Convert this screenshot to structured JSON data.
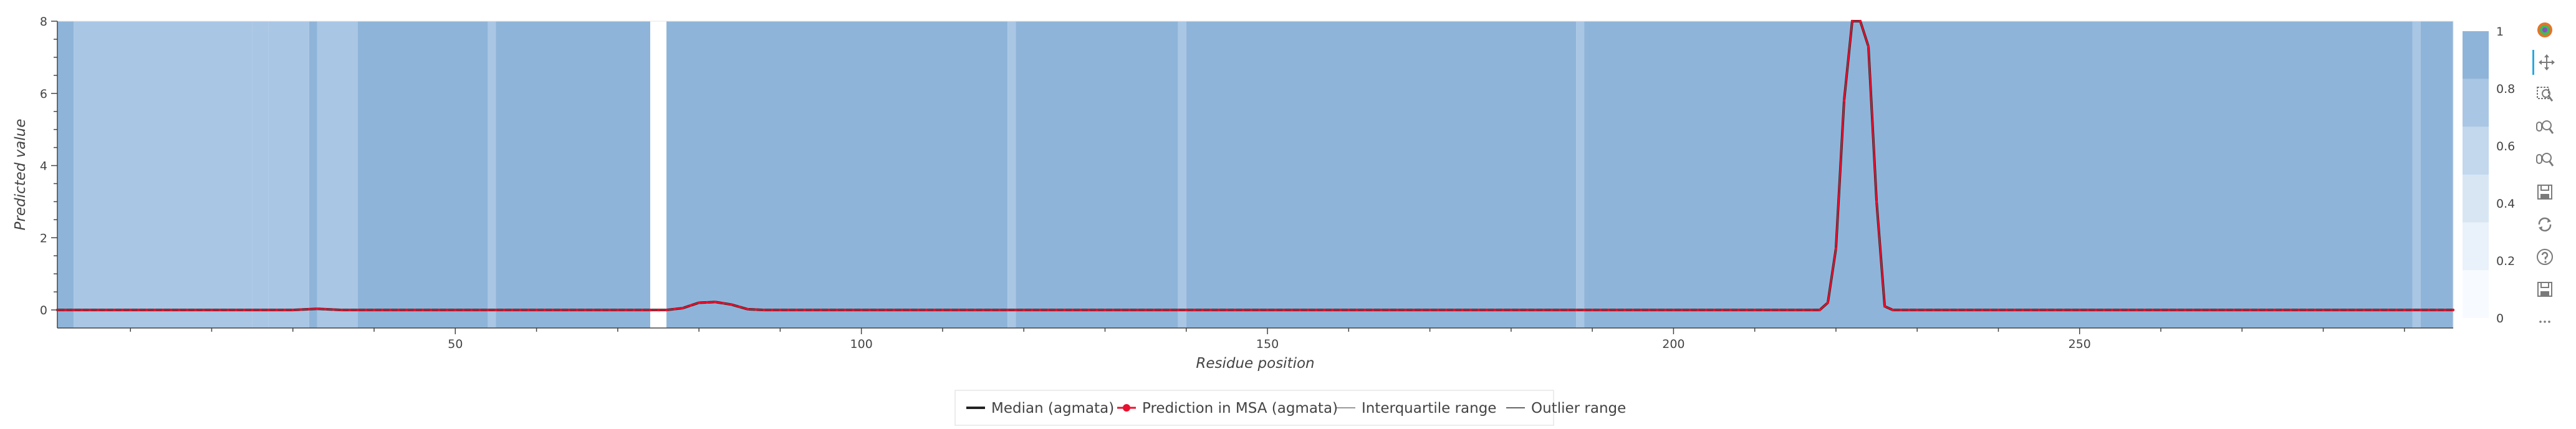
{
  "chart_data": {
    "type": "line",
    "xlabel": "Residue position",
    "ylabel": "Predicted value",
    "xlim": [
      1,
      296
    ],
    "ylim": [
      -0.5,
      8
    ],
    "x_ticks": [
      50,
      100,
      150,
      200,
      250
    ],
    "x_tick_labels": [
      "50",
      "100",
      "150",
      "200",
      "250"
    ],
    "y_ticks": [
      0,
      2,
      4,
      6,
      8
    ],
    "y_tick_labels": [
      "0",
      "2",
      "4",
      "6",
      "8"
    ],
    "grid": false,
    "legend_position": "bottom-center",
    "series": [
      {
        "name": "Median (agmata)",
        "color": "#222222",
        "style": "line",
        "points": [
          [
            1,
            0
          ],
          [
            30,
            0
          ],
          [
            33,
            0.03
          ],
          [
            36,
            0
          ],
          [
            40,
            0
          ],
          [
            76,
            0
          ],
          [
            78,
            0.05
          ],
          [
            80,
            0.2
          ],
          [
            82,
            0.22
          ],
          [
            84,
            0.15
          ],
          [
            86,
            0.02
          ],
          [
            88,
            0
          ],
          [
            218,
            0
          ],
          [
            219,
            0.2
          ],
          [
            220,
            1.7
          ],
          [
            221,
            5.8
          ],
          [
            222,
            8
          ],
          [
            223,
            8
          ],
          [
            224,
            7.3
          ],
          [
            225,
            3
          ],
          [
            226,
            0.1
          ],
          [
            227,
            0
          ],
          [
            296,
            0
          ]
        ]
      },
      {
        "name": "Prediction in MSA (agmata)",
        "color": "#e8112d",
        "style": "line-markers",
        "points": [
          [
            1,
            0
          ],
          [
            30,
            0
          ],
          [
            33,
            0.03
          ],
          [
            36,
            0
          ],
          [
            40,
            0
          ],
          [
            76,
            0
          ],
          [
            78,
            0.05
          ],
          [
            80,
            0.2
          ],
          [
            82,
            0.22
          ],
          [
            84,
            0.15
          ],
          [
            86,
            0.02
          ],
          [
            88,
            0
          ],
          [
            218,
            0
          ],
          [
            219,
            0.2
          ],
          [
            220,
            1.7
          ],
          [
            221,
            5.8
          ],
          [
            222,
            8
          ],
          [
            223,
            8
          ],
          [
            224,
            7.3
          ],
          [
            225,
            3
          ],
          [
            226,
            0.1
          ],
          [
            227,
            0
          ],
          [
            296,
            0
          ]
        ]
      },
      {
        "name": "Interquartile range",
        "color": "#999999",
        "style": "line",
        "points": []
      },
      {
        "name": "Outlier range",
        "color": "#666666",
        "style": "line",
        "points": []
      }
    ],
    "background_regions": {
      "description_values": "MSA coverage fraction per residue",
      "segments": [
        {
          "start": 1,
          "end": 3,
          "value": 0.9
        },
        {
          "start": 3,
          "end": 25,
          "value": 0.7
        },
        {
          "start": 25,
          "end": 27,
          "value": 0.8
        },
        {
          "start": 27,
          "end": 32,
          "value": 0.75
        },
        {
          "start": 32,
          "end": 33,
          "value": 0.95
        },
        {
          "start": 33,
          "end": 38,
          "value": 0.75
        },
        {
          "start": 38,
          "end": 54,
          "value": 1
        },
        {
          "start": 54,
          "end": 55,
          "value": 0.7
        },
        {
          "start": 55,
          "end": 74,
          "value": 1
        },
        {
          "start": 74,
          "end": 76,
          "value": 0
        },
        {
          "start": 76,
          "end": 118,
          "value": 1
        },
        {
          "start": 118,
          "end": 119,
          "value": 0.7
        },
        {
          "start": 119,
          "end": 139,
          "value": 1
        },
        {
          "start": 139,
          "end": 140,
          "value": 0.7
        },
        {
          "start": 140,
          "end": 188,
          "value": 1
        },
        {
          "start": 188,
          "end": 189,
          "value": 0.7
        },
        {
          "start": 189,
          "end": 291,
          "value": 1
        },
        {
          "start": 291,
          "end": 292,
          "value": 0.7
        },
        {
          "start": 292,
          "end": 296,
          "value": 1
        }
      ]
    },
    "colorbar": {
      "range": [
        0,
        1
      ],
      "ticks": [
        "0",
        "0.2",
        "0.4",
        "0.6",
        "0.8",
        "1"
      ],
      "colors": [
        "#f7fbff",
        "#e9f1fa",
        "#d8e6f4",
        "#c3d7ed",
        "#a9c6e4",
        "#8fb4d9"
      ]
    }
  },
  "legend": {
    "items": [
      {
        "label": "Median (agmata)"
      },
      {
        "label": "Prediction in MSA (agmata)"
      },
      {
        "label": "Interquartile range"
      },
      {
        "label": "Outlier range"
      }
    ]
  },
  "toolbar": {
    "items": [
      {
        "name": "bokeh-logo-icon"
      },
      {
        "name": "pan-icon"
      },
      {
        "name": "box-zoom-icon"
      },
      {
        "name": "wheel-zoom-in-icon"
      },
      {
        "name": "wheel-zoom-out-icon"
      },
      {
        "name": "save-icon"
      },
      {
        "name": "reset-icon"
      },
      {
        "name": "help-icon"
      },
      {
        "name": "save-alt-icon"
      },
      {
        "name": "more-icon"
      }
    ]
  }
}
